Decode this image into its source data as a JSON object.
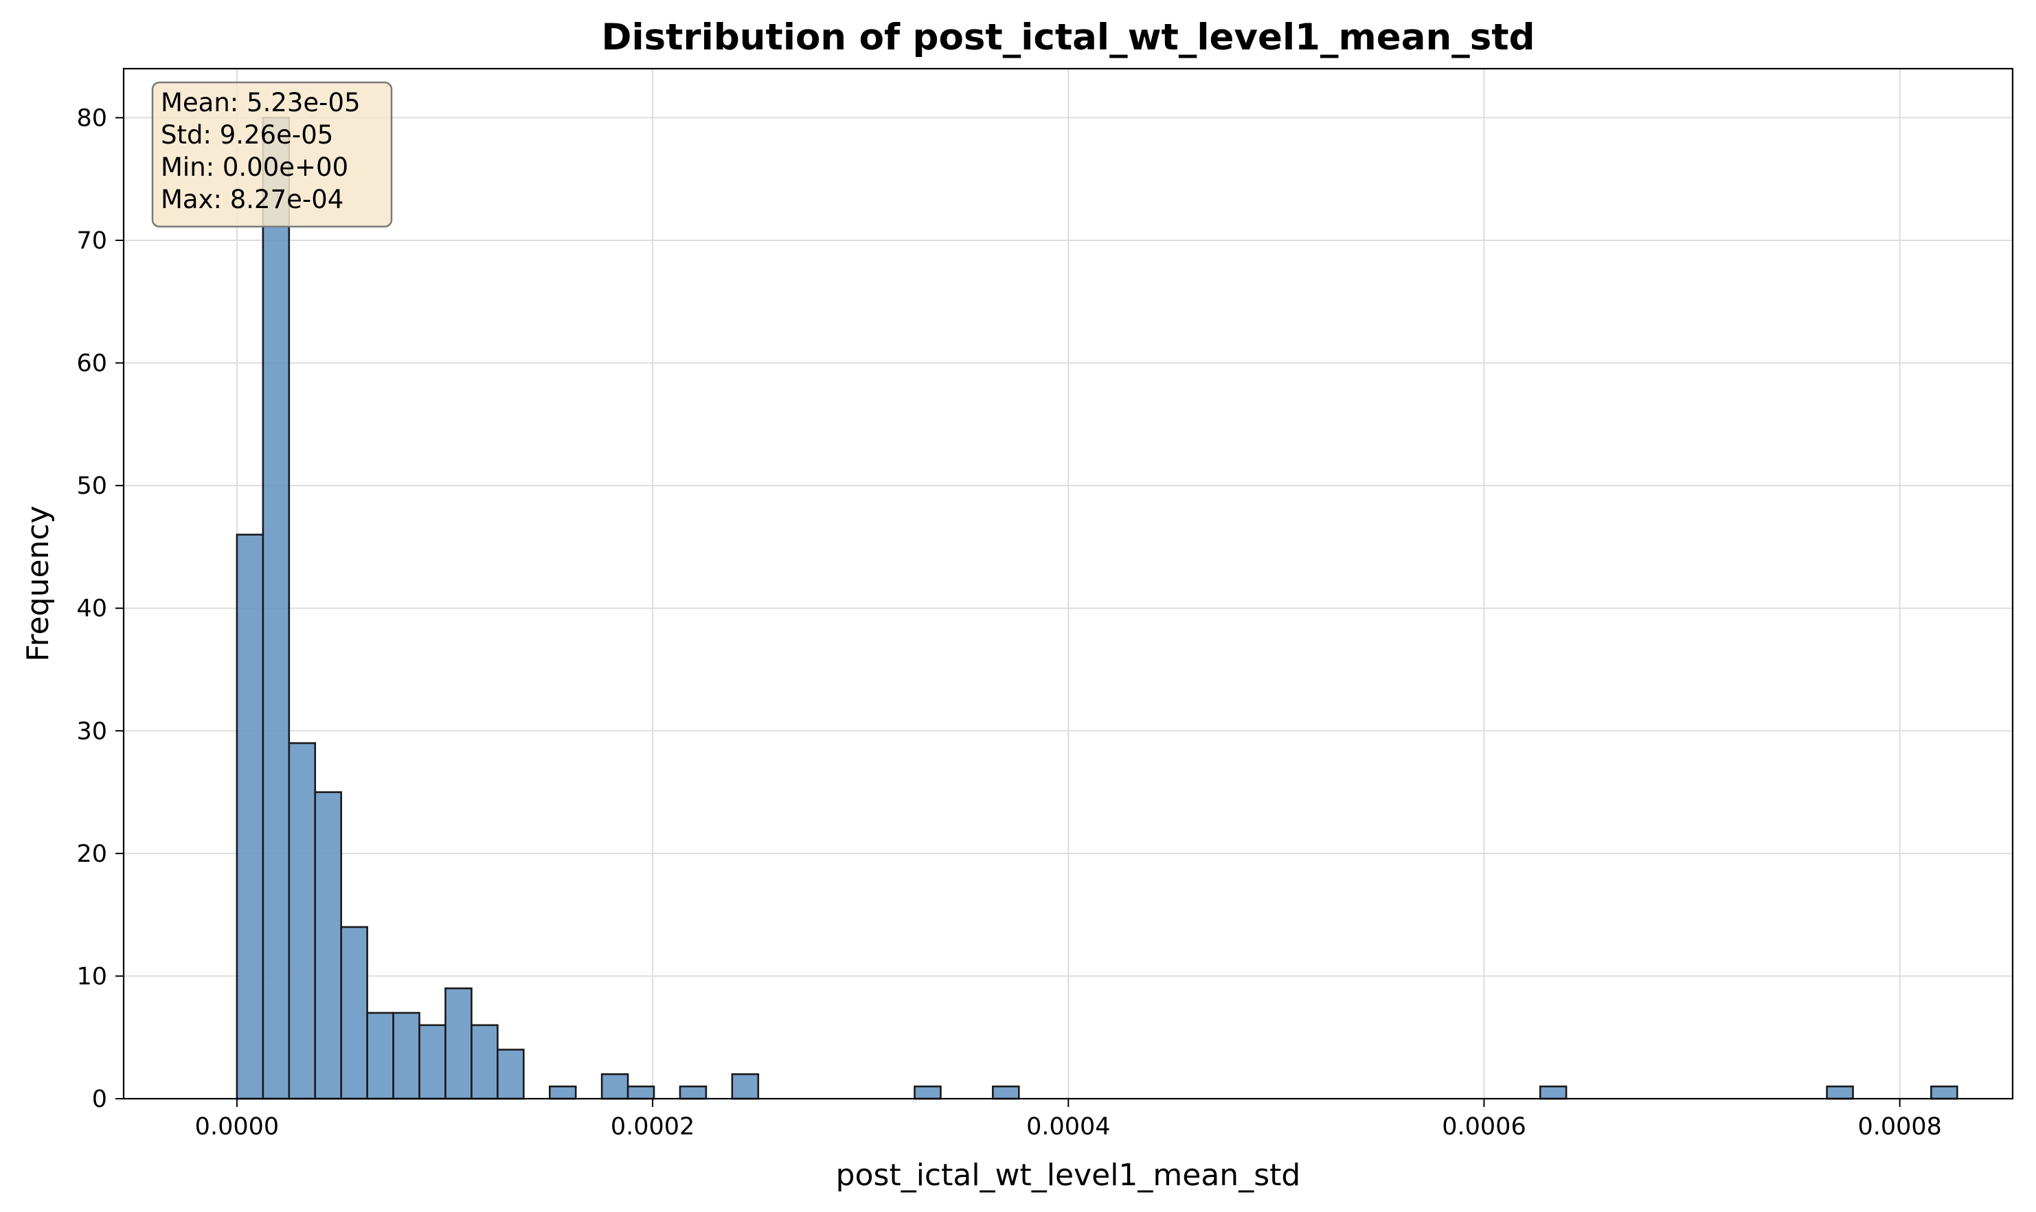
{
  "chart_data": {
    "type": "bar",
    "title": "Distribution of post_ictal_wt_level1_mean_std",
    "xlabel": "post_ictal_wt_level1_mean_std",
    "ylabel": "Frequency",
    "xlim": [
      -5.45e-05,
      0.0008543
    ],
    "ylim": [
      0,
      84
    ],
    "xticks": [
      0.0,
      0.0002,
      0.0004,
      0.0006,
      0.0008
    ],
    "xtick_labels": [
      "0.0000",
      "0.0002",
      "0.0004",
      "0.0006",
      "0.0008"
    ],
    "yticks": [
      0,
      10,
      20,
      30,
      40,
      50,
      60,
      70,
      80
    ],
    "ytick_labels": [
      "0",
      "10",
      "20",
      "30",
      "40",
      "50",
      "60",
      "70",
      "80"
    ],
    "grid": true,
    "bin_start": 0.0,
    "bin_width": 1.254e-05,
    "bin_counts": [
      46,
      80,
      29,
      25,
      14,
      7,
      7,
      6,
      9,
      6,
      4,
      0,
      1,
      0,
      2,
      1,
      0,
      1,
      0,
      2,
      0,
      0,
      0,
      0,
      0,
      0,
      1,
      0,
      0,
      1,
      0,
      0,
      0,
      0,
      0,
      0,
      0,
      0,
      0,
      0,
      0,
      0,
      0,
      0,
      0,
      0,
      0,
      0,
      0,
      0,
      1,
      0,
      0,
      0,
      0,
      0,
      0,
      0,
      0,
      0,
      0,
      1,
      0,
      0,
      0,
      1
    ],
    "colors": {
      "bar_fill": "#6a98c4",
      "bar_edge": "#1a1a1a",
      "grid": "#dddddd",
      "stats_box_fill": "#f6e8cc",
      "stats_box_edge": "#7a7a7a"
    },
    "stats_box": {
      "placement": "top-left",
      "lines": [
        "Mean: 5.23e-05",
        "Std: 9.26e-05",
        "Min: 0.00e+00",
        "Max: 8.27e-04"
      ]
    }
  }
}
